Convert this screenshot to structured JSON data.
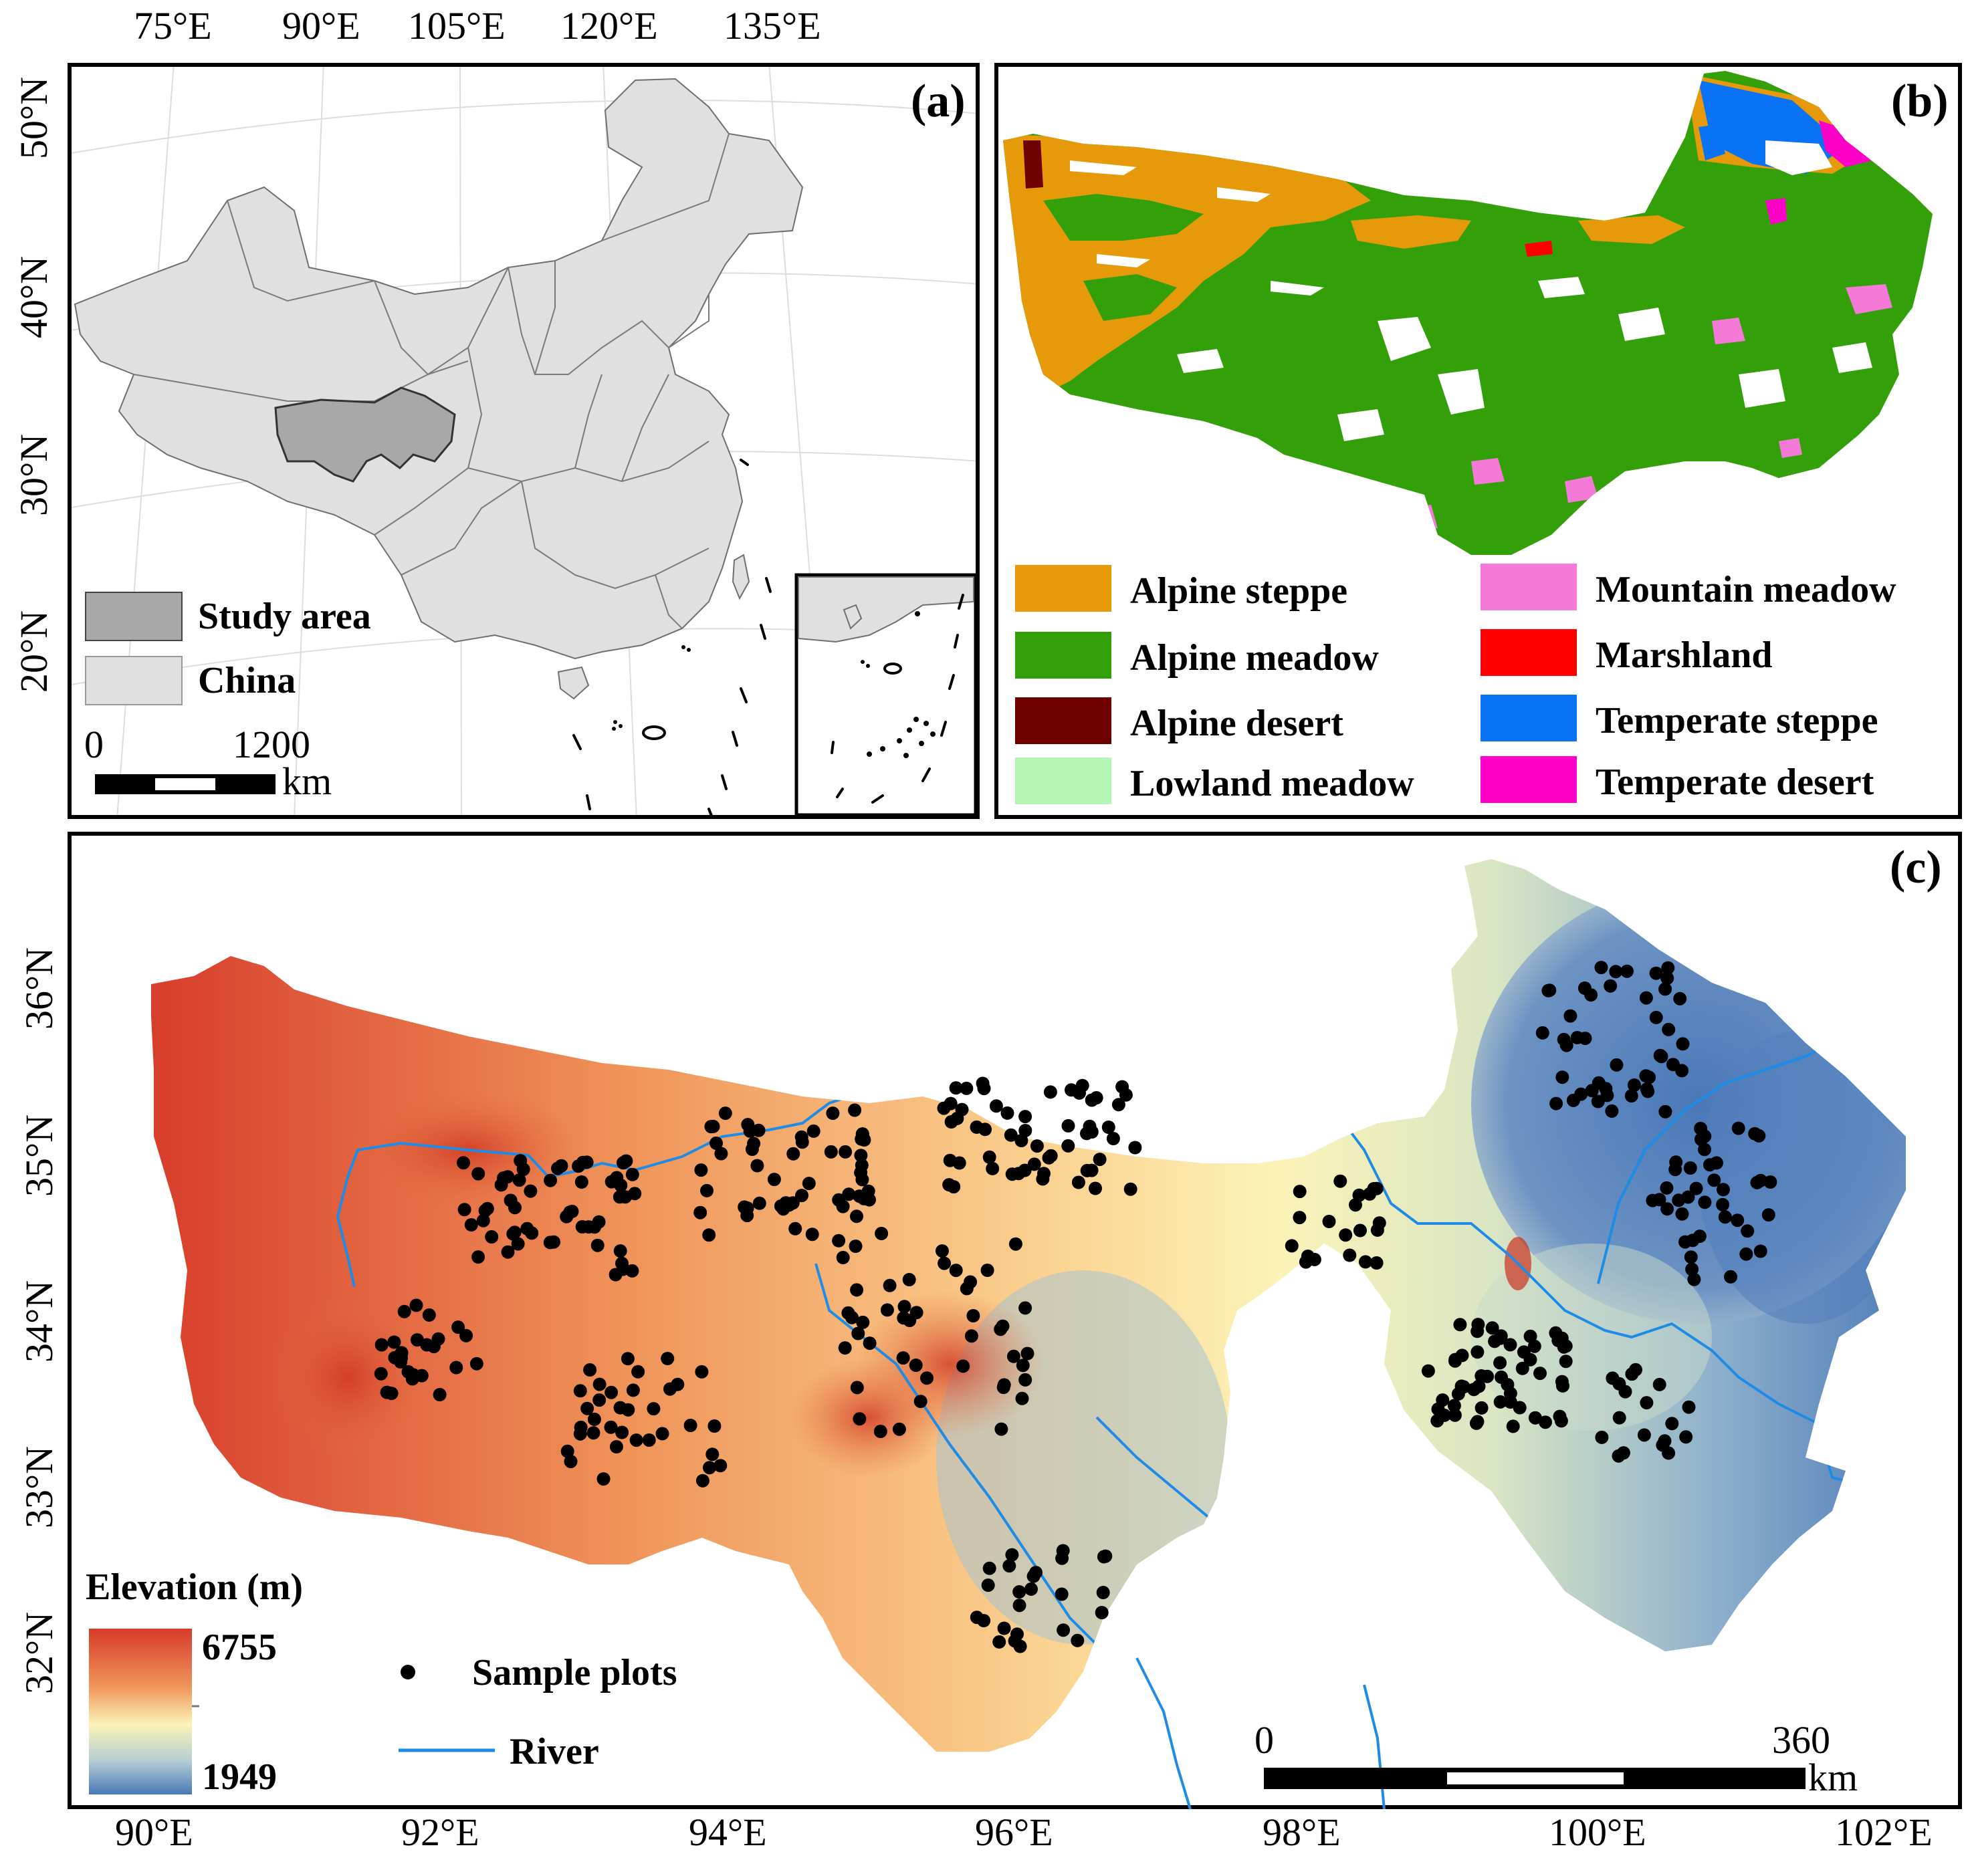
{
  "panel_a": {
    "label": "(a)",
    "lon_ticks": [
      "75°E",
      "90°E",
      "105°E",
      "120°E",
      "135°E"
    ],
    "lat_ticks": [
      "50°N",
      "40°N",
      "30°N",
      "20°N"
    ],
    "legend": [
      {
        "label": "Study area",
        "color": "#a8a8a8"
      },
      {
        "label": "China",
        "color": "#e0e0e0"
      }
    ],
    "scale": {
      "start": "0",
      "end": "1200",
      "unit": "km"
    }
  },
  "panel_b": {
    "label": "(b)",
    "legend": [
      {
        "label": "Alpine steppe",
        "color": "#e69a0a"
      },
      {
        "label": "Alpine meadow",
        "color": "#33a00a"
      },
      {
        "label": "Alpine desert",
        "color": "#6e0000"
      },
      {
        "label": "Lowland meadow",
        "color": "#b4f5b4"
      },
      {
        "label": "Mountain meadow",
        "color": "#f57ad7"
      },
      {
        "label": "Marshland",
        "color": "#ff0000"
      },
      {
        "label": "Temperate steppe",
        "color": "#0a73f5"
      },
      {
        "label": "Temperate desert",
        "color": "#ff00c8"
      }
    ],
    "colors": {
      "alpine_meadow": "#33a00a",
      "alpine_steppe": "#e69a0a"
    }
  },
  "panel_c": {
    "label": "(c)",
    "lon_ticks": [
      "90°E",
      "92°E",
      "94°E",
      "96°E",
      "98°E",
      "100°E",
      "102°E"
    ],
    "lat_ticks": [
      "36°N",
      "35°N",
      "34°N",
      "33°N",
      "32°N"
    ],
    "elevation": {
      "title": "Elevation (m)",
      "max": "6755",
      "min": "1949"
    },
    "legend": {
      "points": "Sample plots",
      "river": "River"
    },
    "scale": {
      "start": "0",
      "end": "360",
      "unit": "km"
    },
    "colors": {
      "river": "#1e8ce6",
      "high": "#d73a2a",
      "mid": "#fbf3b8",
      "low": "#4a78b8"
    }
  }
}
